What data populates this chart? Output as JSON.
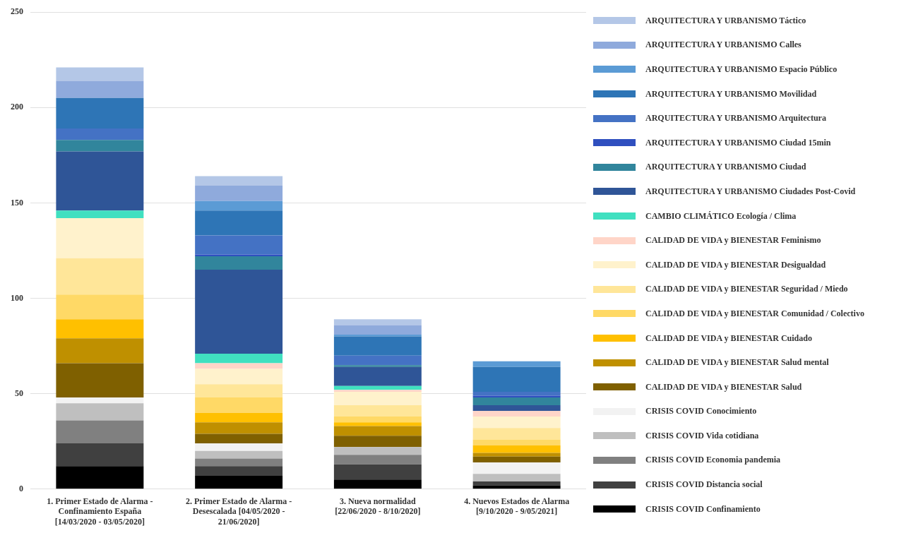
{
  "chart_data": {
    "type": "bar",
    "stacked": true,
    "grid": "y",
    "legend": "right",
    "categories": [
      "1. Primer Estado de Alarma - Confinamiento España [14/03/2020 - 03/05/2020]",
      "2. Primer Estado de Alarma - Desescalada [04/05/2020 - 21/06/2020]",
      "3. Nueva normalidad [22/06/2020 - 8/10/2020]",
      "4. Nuevos Estados de Alarma [9/10/2020 - 9/05/2021]"
    ],
    "ylim": [
      0,
      250
    ],
    "yticks": [
      0,
      50,
      100,
      150,
      200,
      250
    ],
    "series": [
      {
        "name": "CRISIS COVID Confinamiento",
        "color": "#000000",
        "values": [
          12,
          7,
          5,
          2
        ]
      },
      {
        "name": "CRISIS COVID Distancia social",
        "color": "#404040",
        "values": [
          12,
          5,
          8,
          2
        ]
      },
      {
        "name": "CRISIS COVID Economia pandemia",
        "color": "#808080",
        "values": [
          12,
          4,
          5,
          0
        ]
      },
      {
        "name": "CRISIS COVID Vida cotidiana",
        "color": "#bfbfbf",
        "values": [
          9,
          4,
          4,
          4
        ]
      },
      {
        "name": "CRISIS COVID Conocimiento",
        "color": "#f2f2f2",
        "values": [
          3,
          4,
          0,
          6
        ]
      },
      {
        "name": "CALIDAD DE VIDA y BIENESTAR Salud",
        "color": "#7f6000",
        "values": [
          18,
          5,
          6,
          3
        ]
      },
      {
        "name": "CALIDAD DE VIDA y BIENESTAR Salud mental",
        "color": "#bf9000",
        "values": [
          13,
          6,
          5,
          2
        ]
      },
      {
        "name": "CALIDAD DE VIDA y BIENESTAR Cuidado",
        "color": "#ffc000",
        "values": [
          10,
          5,
          2,
          4
        ]
      },
      {
        "name": "CALIDAD DE VIDA y BIENESTAR Comunidad / Colectivo",
        "color": "#ffd966",
        "values": [
          13,
          8,
          3,
          3
        ]
      },
      {
        "name": "CALIDAD DE VIDA y BIENESTAR Seguridad / Miedo",
        "color": "#ffe699",
        "values": [
          19,
          7,
          6,
          6
        ]
      },
      {
        "name": "CALIDAD DE VIDA y BIENESTAR Desigualdad",
        "color": "#fff2cc",
        "values": [
          21,
          8,
          7,
          6
        ]
      },
      {
        "name": "CALIDAD DE VIDA y BIENESTAR Feminismo",
        "color": "#ffd5c8",
        "values": [
          0,
          3,
          1,
          3
        ]
      },
      {
        "name": "CAMBIO CLIMÁTICO Ecología / Clima",
        "color": "#40e0c0",
        "values": [
          4,
          5,
          2,
          0
        ]
      },
      {
        "name": "ARQUITECTURA Y URBANISMO Ciudades Post-Covid",
        "color": "#2f5597",
        "values": [
          31,
          44,
          10,
          3
        ]
      },
      {
        "name": "ARQUITECTURA Y URBANISMO Ciudad",
        "color": "#31859c",
        "values": [
          6,
          7,
          1,
          4
        ]
      },
      {
        "name": "ARQUITECTURA Y URBANISMO Ciudad 15min",
        "color": "#2f4fbf",
        "values": [
          0,
          1,
          0,
          1
        ]
      },
      {
        "name": "ARQUITECTURA Y URBANISMO Arquitectura",
        "color": "#4472c4",
        "values": [
          6,
          10,
          5,
          2
        ]
      },
      {
        "name": "ARQUITECTURA Y URBANISMO Movilidad",
        "color": "#2e75b6",
        "values": [
          16,
          13,
          10,
          13
        ]
      },
      {
        "name": "ARQUITECTURA Y URBANISMO Espacio Público",
        "color": "#5b9bd5",
        "values": [
          0,
          5,
          1,
          3
        ]
      },
      {
        "name": "ARQUITECTURA Y URBANISMO Calles",
        "color": "#8faadc",
        "values": [
          9,
          8,
          5,
          0
        ]
      },
      {
        "name": "ARQUITECTURA Y URBANISMO Táctico",
        "color": "#b4c7e7",
        "values": [
          7,
          5,
          3,
          0
        ]
      }
    ]
  }
}
